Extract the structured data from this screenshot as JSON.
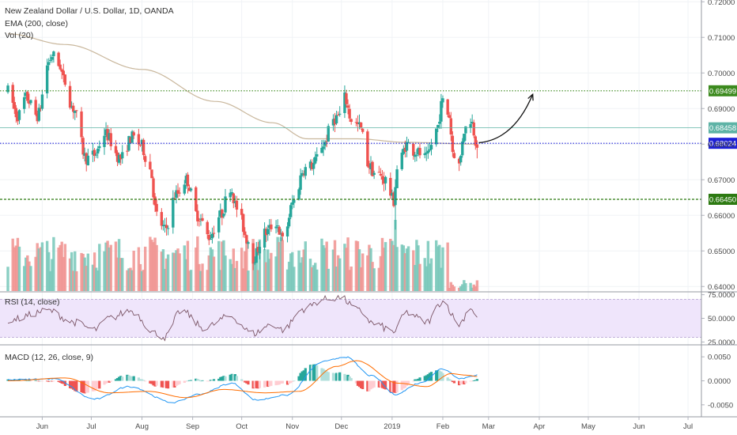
{
  "chart_data": [
    {
      "type": "candlestick",
      "title": "New Zealand Dollar / U.S. Dollar, 1D, OANDA",
      "x_start": "2018-05-11",
      "x_end": "2019-02-22",
      "ylim": [
        0.6385,
        0.7205
      ],
      "y_ticks": [
        "0.72000",
        "0.71000",
        "0.70000",
        "0.69000",
        "0.68000",
        "0.67000",
        "0.66000",
        "0.65000",
        "0.64000"
      ],
      "x_ticks": [
        "Jun",
        "Jul",
        "Aug",
        "Sep",
        "Oct",
        "Nov",
        "Dec",
        "2019",
        "Feb",
        "Mar",
        "Apr",
        "May",
        "Jun",
        "Jul"
      ],
      "price_anchors": [
        [
          "2018-05-11",
          0.695
        ],
        [
          "2018-05-17",
          0.688
        ],
        [
          "2018-05-22",
          0.693
        ],
        [
          "2018-05-29",
          0.688
        ],
        [
          "2018-06-05",
          0.703
        ],
        [
          "2018-06-07",
          0.705
        ],
        [
          "2018-06-12",
          0.702
        ],
        [
          "2018-06-14",
          0.698
        ],
        [
          "2018-06-20",
          0.69
        ],
        [
          "2018-06-28",
          0.676
        ],
        [
          "2018-07-03",
          0.677
        ],
        [
          "2018-07-09",
          0.683
        ],
        [
          "2018-07-19",
          0.676
        ],
        [
          "2018-07-26",
          0.682
        ],
        [
          "2018-07-31",
          0.68
        ],
        [
          "2018-08-06",
          0.673
        ],
        [
          "2018-08-10",
          0.66
        ],
        [
          "2018-08-15",
          0.656
        ],
        [
          "2018-08-22",
          0.666
        ],
        [
          "2018-08-28",
          0.67
        ],
        [
          "2018-09-04",
          0.66
        ],
        [
          "2018-09-11",
          0.654
        ],
        [
          "2018-09-18",
          0.66
        ],
        [
          "2018-09-24",
          0.668
        ],
        [
          "2018-09-28",
          0.662
        ],
        [
          "2018-10-05",
          0.653
        ],
        [
          "2018-10-08",
          0.648
        ],
        [
          "2018-10-15",
          0.655
        ],
        [
          "2018-10-22",
          0.658
        ],
        [
          "2018-10-26",
          0.653
        ],
        [
          "2018-11-02",
          0.664
        ],
        [
          "2018-11-08",
          0.673
        ],
        [
          "2018-11-13",
          0.674
        ],
        [
          "2018-11-20",
          0.68
        ],
        [
          "2018-11-26",
          0.687
        ],
        [
          "2018-11-30",
          0.688
        ],
        [
          "2018-12-03",
          0.693
        ],
        [
          "2018-12-07",
          0.687
        ],
        [
          "2018-12-12",
          0.685
        ],
        [
          "2018-12-18",
          0.674
        ],
        [
          "2018-12-21",
          0.672
        ],
        [
          "2018-12-28",
          0.67
        ],
        [
          "2019-01-02",
          0.664
        ],
        [
          "2019-01-04",
          0.673
        ],
        [
          "2019-01-10",
          0.68
        ],
        [
          "2019-01-15",
          0.678
        ],
        [
          "2019-01-22",
          0.676
        ],
        [
          "2019-01-28",
          0.684
        ],
        [
          "2019-02-01",
          0.692
        ],
        [
          "2019-02-05",
          0.688
        ],
        [
          "2019-02-07",
          0.678
        ],
        [
          "2019-02-11",
          0.674
        ],
        [
          "2019-02-14",
          0.684
        ],
        [
          "2019-02-18",
          0.687
        ],
        [
          "2019-02-22",
          0.6802
        ]
      ],
      "ema_200": {
        "label": "EMA (200, close)",
        "color": "#c9b79c",
        "points": [
          [
            "2018-05-11",
            0.711
          ],
          [
            "2018-06-15",
            0.708
          ],
          [
            "2018-08-01",
            0.701
          ],
          [
            "2018-09-15",
            0.692
          ],
          [
            "2018-10-20",
            0.686
          ],
          [
            "2018-11-10",
            0.6815
          ],
          [
            "2018-12-10",
            0.6815
          ],
          [
            "2019-01-10",
            0.6805
          ],
          [
            "2019-02-22",
            0.68
          ]
        ]
      },
      "volume": {
        "label": "Vol (20)",
        "up_color": "#76c7b8",
        "down_color": "#f0928f"
      },
      "horizontal_lines": [
        {
          "value": 0.69499,
          "label": "0.69499",
          "color": "#3c8a1e",
          "style": "dotted"
        },
        {
          "value": 0.68458,
          "label": "0.68458",
          "color": "#5eb3a6",
          "style": "solid"
        },
        {
          "value": 0.68024,
          "label": "0.68024",
          "color": "#1e20d8",
          "style": "dotted"
        },
        {
          "value": 0.6645,
          "label": "0.66450",
          "color": "#2d7a12",
          "style": "dashed"
        }
      ],
      "annotation": {
        "type": "arrow",
        "from": [
          "2019-02-23",
          0.6804
        ],
        "to": [
          "2019-03-28",
          0.694
        ],
        "color": "#111111"
      },
      "up_color": "#26a69a",
      "down_color": "#ef5350"
    },
    {
      "type": "line",
      "title": "RSI (14, close)",
      "ylim": [
        22,
        78
      ],
      "y_ticks": [
        "75.0000",
        "50.0000",
        "25.0000"
      ],
      "band": [
        30,
        70
      ],
      "band_color": "#efe5fb",
      "line_color": "#7b5566",
      "x_start": "2018-05-11",
      "x_end": "2019-02-22",
      "values_note_anchors": [
        [
          "2018-05-11",
          48
        ],
        [
          "2018-06-05",
          58
        ],
        [
          "2018-06-20",
          46
        ],
        [
          "2018-07-03",
          38
        ],
        [
          "2018-07-12",
          50
        ],
        [
          "2018-07-25",
          58
        ],
        [
          "2018-08-10",
          34
        ],
        [
          "2018-08-15",
          30
        ],
        [
          "2018-08-25",
          58
        ],
        [
          "2018-09-08",
          40
        ],
        [
          "2018-09-24",
          52
        ],
        [
          "2018-10-08",
          34
        ],
        [
          "2018-10-20",
          44
        ],
        [
          "2018-10-26",
          38
        ],
        [
          "2018-11-08",
          60
        ],
        [
          "2018-11-20",
          70
        ],
        [
          "2018-11-30",
          72
        ],
        [
          "2018-12-12",
          58
        ],
        [
          "2018-12-21",
          44
        ],
        [
          "2019-01-02",
          36
        ],
        [
          "2019-01-10",
          56
        ],
        [
          "2019-01-22",
          46
        ],
        [
          "2019-02-01",
          68
        ],
        [
          "2019-02-11",
          44
        ],
        [
          "2019-02-18",
          62
        ],
        [
          "2019-02-22",
          51
        ]
      ]
    },
    {
      "type": "bar",
      "title": "MACD (12, 26, close, 9)",
      "ylim": [
        -0.0075,
        0.0075
      ],
      "y_ticks": [
        "0.0050",
        "0.0000",
        "-0.0050"
      ],
      "macd_color": "#2196f3",
      "signal_color": "#ff6d00",
      "x_start": "2018-05-11",
      "x_end": "2019-02-22",
      "macd_anchors": [
        [
          "2018-05-11",
          0.0002
        ],
        [
          "2018-06-08",
          0.0004
        ],
        [
          "2018-07-03",
          -0.0038
        ],
        [
          "2018-07-24",
          -0.0012
        ],
        [
          "2018-08-20",
          -0.0045
        ],
        [
          "2018-09-05",
          -0.0028
        ],
        [
          "2018-09-25",
          -0.0005
        ],
        [
          "2018-10-10",
          -0.004
        ],
        [
          "2018-10-28",
          -0.003
        ],
        [
          "2018-11-20",
          0.004
        ],
        [
          "2018-12-03",
          0.005
        ],
        [
          "2018-12-20",
          0.001
        ],
        [
          "2019-01-03",
          -0.0028
        ],
        [
          "2019-01-18",
          -0.0005
        ],
        [
          "2019-02-01",
          0.0025
        ],
        [
          "2019-02-12",
          0.0005
        ],
        [
          "2019-02-22",
          0.0012
        ]
      ],
      "signal_anchors": [
        [
          "2018-05-11",
          0.0
        ],
        [
          "2018-06-15",
          0.0006
        ],
        [
          "2018-07-12",
          -0.0025
        ],
        [
          "2018-08-05",
          -0.0022
        ],
        [
          "2018-08-28",
          -0.0035
        ],
        [
          "2018-09-20",
          -0.0018
        ],
        [
          "2018-10-15",
          -0.0025
        ],
        [
          "2018-11-05",
          -0.0022
        ],
        [
          "2018-11-28",
          0.003
        ],
        [
          "2018-12-10",
          0.0042
        ],
        [
          "2019-01-05",
          -0.0005
        ],
        [
          "2019-01-22",
          -0.0012
        ],
        [
          "2019-02-06",
          0.0015
        ],
        [
          "2019-02-15",
          0.0012
        ],
        [
          "2019-02-22",
          0.0009
        ]
      ]
    }
  ]
}
